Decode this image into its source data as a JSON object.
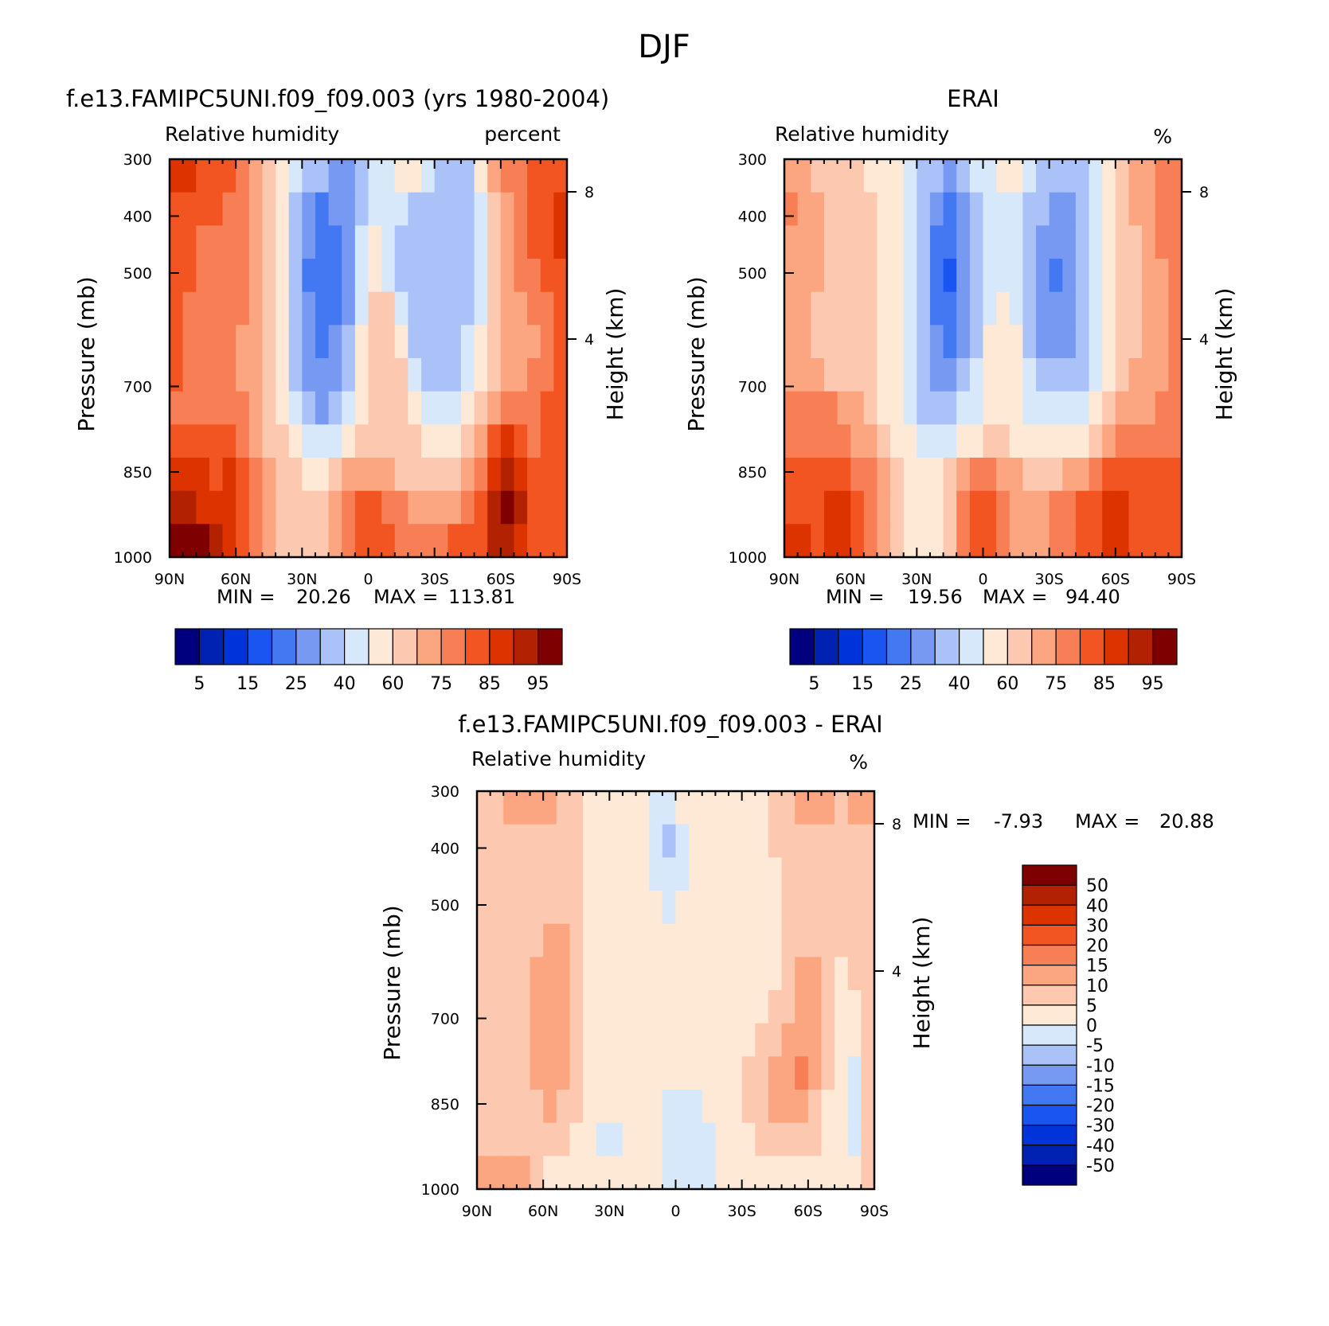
{
  "figure_title": "DJF",
  "colors": {
    "rh_palette": [
      "#00007f",
      "#0022b2",
      "#0033d9",
      "#1a55f2",
      "#4477f2",
      "#7799f2",
      "#aac2f7",
      "#d6e8fa",
      "#fee8d6",
      "#fcc8b0",
      "#fba680",
      "#f77e55",
      "#f25522",
      "#dd3300",
      "#b22200",
      "#7f0000"
    ],
    "diff_palette": [
      "#00007f",
      "#0022b2",
      "#0033d9",
      "#1a55f2",
      "#4477f2",
      "#7799f2",
      "#aac2f7",
      "#d6e8fa",
      "#fee8d6",
      "#fcc8b0",
      "#fba680",
      "#f77e55",
      "#f25522",
      "#dd3300",
      "#b22200",
      "#7f0000"
    ]
  },
  "chart_data": [
    {
      "type": "heatmap",
      "panel_title": "f.e13.FAMIPC5UNI.f09_f09.003 (yrs 1980-2004)",
      "left_label": "Relative humidity",
      "right_label": "percent",
      "ylabel": "Pressure (mb)",
      "right_axis_label": "Height (km)",
      "x_ticks": [
        "90N",
        "60N",
        "30N",
        "0",
        "30S",
        "60S",
        "90S"
      ],
      "y_ticks": [
        "300",
        "400",
        "500",
        "700",
        "850",
        "1000"
      ],
      "height_ticks": [
        "8",
        "4"
      ],
      "min_text": "MIN =",
      "min_value": "20.26",
      "max_text": "MAX =",
      "max_value": "113.81",
      "colorbar_labels": [
        "5",
        "15",
        "25",
        "40",
        "60",
        "75",
        "85",
        "95"
      ],
      "grid_rows": [
        [
          13,
          13,
          12,
          12,
          12,
          11,
          10,
          9,
          8,
          7,
          6,
          6,
          5,
          5,
          6,
          7,
          7,
          8,
          8,
          7,
          6,
          6,
          6,
          8,
          10,
          11,
          11,
          12,
          12,
          12
        ],
        [
          12,
          12,
          12,
          12,
          11,
          11,
          10,
          9,
          8,
          6,
          5,
          4,
          5,
          5,
          6,
          7,
          7,
          7,
          6,
          6,
          6,
          6,
          6,
          7,
          9,
          10,
          11,
          12,
          12,
          13
        ],
        [
          12,
          12,
          11,
          11,
          11,
          11,
          10,
          9,
          8,
          6,
          5,
          4,
          4,
          5,
          7,
          8,
          7,
          6,
          6,
          6,
          6,
          6,
          6,
          7,
          9,
          10,
          11,
          12,
          12,
          13
        ],
        [
          12,
          12,
          11,
          11,
          11,
          11,
          10,
          9,
          8,
          6,
          4,
          4,
          4,
          5,
          7,
          8,
          7,
          6,
          6,
          6,
          6,
          6,
          6,
          7,
          9,
          10,
          11,
          11,
          12,
          12
        ],
        [
          12,
          11,
          11,
          11,
          11,
          11,
          10,
          9,
          8,
          6,
          5,
          4,
          4,
          5,
          7,
          9,
          9,
          7,
          6,
          6,
          6,
          6,
          6,
          7,
          9,
          10,
          10,
          11,
          11,
          12
        ],
        [
          12,
          11,
          11,
          11,
          11,
          10,
          10,
          9,
          8,
          6,
          5,
          4,
          5,
          6,
          8,
          9,
          9,
          8,
          6,
          6,
          6,
          6,
          7,
          8,
          9,
          10,
          10,
          10,
          11,
          12
        ],
        [
          12,
          11,
          11,
          11,
          11,
          10,
          10,
          9,
          8,
          6,
          5,
          5,
          5,
          6,
          8,
          9,
          9,
          9,
          7,
          6,
          6,
          6,
          7,
          8,
          9,
          10,
          10,
          11,
          11,
          12
        ],
        [
          11,
          11,
          11,
          11,
          11,
          11,
          10,
          9,
          8,
          7,
          6,
          5,
          6,
          7,
          8,
          9,
          9,
          9,
          8,
          7,
          7,
          7,
          8,
          9,
          10,
          11,
          11,
          11,
          12,
          12
        ],
        [
          12,
          12,
          12,
          12,
          12,
          11,
          10,
          9,
          9,
          8,
          7,
          7,
          7,
          8,
          9,
          9,
          9,
          9,
          9,
          8,
          8,
          8,
          9,
          10,
          12,
          13,
          12,
          11,
          12,
          12
        ],
        [
          13,
          13,
          13,
          12,
          13,
          12,
          11,
          10,
          9,
          9,
          8,
          8,
          9,
          10,
          10,
          10,
          10,
          9,
          9,
          9,
          9,
          9,
          10,
          11,
          13,
          14,
          13,
          12,
          12,
          12
        ],
        [
          14,
          14,
          13,
          13,
          13,
          12,
          11,
          10,
          9,
          9,
          9,
          9,
          10,
          11,
          12,
          12,
          11,
          11,
          10,
          10,
          10,
          10,
          11,
          12,
          14,
          15,
          14,
          12,
          12,
          12
        ],
        [
          15,
          15,
          15,
          14,
          13,
          12,
          11,
          10,
          9,
          9,
          9,
          9,
          10,
          11,
          12,
          12,
          12,
          11,
          11,
          11,
          11,
          12,
          12,
          12,
          14,
          14,
          13,
          12,
          12,
          12
        ]
      ]
    },
    {
      "type": "heatmap",
      "panel_title": "ERAI",
      "left_label": "Relative humidity",
      "right_label": "%",
      "ylabel": "Pressure (mb)",
      "right_axis_label": "Height (km)",
      "x_ticks": [
        "90N",
        "60N",
        "30N",
        "0",
        "30S",
        "60S",
        "90S"
      ],
      "y_ticks": [
        "300",
        "400",
        "500",
        "700",
        "850",
        "1000"
      ],
      "height_ticks": [
        "8",
        "4"
      ],
      "min_text": "MIN =",
      "min_value": "19.56",
      "max_text": "MAX =",
      "max_value": "94.40",
      "colorbar_labels": [
        "5",
        "15",
        "25",
        "40",
        "60",
        "75",
        "85",
        "95"
      ],
      "grid_rows": [
        [
          10,
          10,
          9,
          9,
          9,
          9,
          8,
          8,
          8,
          7,
          6,
          6,
          5,
          6,
          7,
          7,
          8,
          8,
          7,
          6,
          6,
          6,
          6,
          7,
          8,
          9,
          10,
          10,
          11,
          11
        ],
        [
          11,
          10,
          10,
          9,
          9,
          9,
          9,
          8,
          8,
          7,
          6,
          5,
          4,
          5,
          6,
          7,
          7,
          7,
          6,
          6,
          5,
          5,
          6,
          7,
          8,
          9,
          10,
          10,
          11,
          11
        ],
        [
          10,
          10,
          10,
          9,
          9,
          9,
          9,
          8,
          8,
          7,
          6,
          4,
          4,
          5,
          6,
          7,
          7,
          7,
          6,
          5,
          5,
          5,
          6,
          7,
          8,
          9,
          9,
          10,
          11,
          11
        ],
        [
          10,
          10,
          10,
          9,
          9,
          9,
          9,
          8,
          8,
          7,
          6,
          4,
          3,
          5,
          6,
          7,
          7,
          7,
          6,
          5,
          4,
          5,
          6,
          7,
          8,
          9,
          9,
          10,
          10,
          11
        ],
        [
          10,
          10,
          9,
          9,
          9,
          9,
          9,
          8,
          8,
          7,
          6,
          4,
          4,
          5,
          6,
          7,
          8,
          7,
          6,
          5,
          5,
          5,
          6,
          7,
          8,
          9,
          9,
          10,
          10,
          11
        ],
        [
          10,
          10,
          9,
          9,
          9,
          9,
          9,
          8,
          8,
          7,
          6,
          5,
          4,
          5,
          6,
          8,
          8,
          8,
          6,
          5,
          5,
          5,
          6,
          7,
          8,
          9,
          9,
          10,
          10,
          11
        ],
        [
          10,
          10,
          10,
          9,
          9,
          9,
          9,
          8,
          8,
          7,
          6,
          5,
          5,
          6,
          7,
          8,
          8,
          8,
          7,
          6,
          6,
          6,
          6,
          7,
          8,
          9,
          10,
          10,
          10,
          11
        ],
        [
          11,
          11,
          11,
          11,
          10,
          10,
          9,
          8,
          8,
          7,
          6,
          6,
          6,
          7,
          7,
          8,
          8,
          8,
          7,
          7,
          7,
          7,
          7,
          8,
          9,
          10,
          10,
          10,
          11,
          11
        ],
        [
          11,
          11,
          11,
          11,
          11,
          10,
          10,
          9,
          8,
          8,
          7,
          7,
          7,
          8,
          8,
          9,
          9,
          8,
          8,
          8,
          8,
          8,
          8,
          9,
          10,
          11,
          11,
          11,
          11,
          11
        ],
        [
          12,
          12,
          12,
          12,
          12,
          11,
          11,
          10,
          9,
          8,
          8,
          8,
          9,
          10,
          11,
          11,
          10,
          10,
          9,
          9,
          9,
          10,
          10,
          11,
          12,
          12,
          12,
          12,
          12,
          12
        ],
        [
          12,
          12,
          12,
          13,
          13,
          12,
          11,
          10,
          9,
          8,
          8,
          8,
          9,
          11,
          12,
          12,
          11,
          10,
          10,
          10,
          11,
          11,
          12,
          12,
          13,
          13,
          12,
          12,
          12,
          12
        ],
        [
          13,
          13,
          12,
          13,
          13,
          12,
          11,
          10,
          9,
          8,
          8,
          8,
          9,
          11,
          12,
          12,
          11,
          10,
          10,
          10,
          11,
          11,
          12,
          12,
          13,
          13,
          12,
          12,
          12,
          12
        ]
      ]
    },
    {
      "type": "heatmap",
      "panel_title": "f.e13.FAMIPC5UNI.f09_f09.003 - ERAI",
      "left_label": "Relative humidity",
      "right_label": "%",
      "ylabel": "Pressure (mb)",
      "right_axis_label": "Height (km)",
      "x_ticks": [
        "90N",
        "60N",
        "30N",
        "0",
        "30S",
        "60S",
        "90S"
      ],
      "y_ticks": [
        "300",
        "400",
        "500",
        "700",
        "850",
        "1000"
      ],
      "height_ticks": [
        "8",
        "4"
      ],
      "min_text": "MIN =",
      "min_value": "-7.93",
      "max_text": "MAX =",
      "max_value": "20.88",
      "colorbar_labels": [
        "50",
        "40",
        "30",
        "20",
        "15",
        "10",
        "5",
        "0",
        "-5",
        "-10",
        "-15",
        "-20",
        "-30",
        "-40",
        "-50"
      ],
      "grid_rows": [
        [
          9,
          9,
          10,
          10,
          10,
          10,
          9,
          9,
          8,
          8,
          8,
          8,
          8,
          7,
          7,
          8,
          8,
          8,
          8,
          8,
          8,
          8,
          9,
          9,
          10,
          10,
          10,
          9,
          10,
          10
        ],
        [
          9,
          9,
          9,
          9,
          9,
          9,
          9,
          9,
          8,
          8,
          8,
          8,
          8,
          7,
          6,
          7,
          8,
          8,
          8,
          8,
          8,
          8,
          9,
          9,
          9,
          9,
          9,
          9,
          9,
          9
        ],
        [
          9,
          9,
          9,
          9,
          9,
          9,
          9,
          9,
          8,
          8,
          8,
          8,
          8,
          7,
          7,
          7,
          8,
          8,
          8,
          8,
          8,
          8,
          8,
          9,
          9,
          9,
          9,
          9,
          9,
          9
        ],
        [
          9,
          9,
          9,
          9,
          9,
          9,
          9,
          9,
          8,
          8,
          8,
          8,
          8,
          8,
          7,
          8,
          8,
          8,
          8,
          8,
          8,
          8,
          8,
          9,
          9,
          9,
          9,
          9,
          9,
          9
        ],
        [
          9,
          9,
          9,
          9,
          9,
          10,
          10,
          9,
          8,
          8,
          8,
          8,
          8,
          8,
          8,
          8,
          8,
          8,
          8,
          8,
          8,
          8,
          8,
          9,
          9,
          9,
          9,
          9,
          9,
          9
        ],
        [
          9,
          9,
          9,
          9,
          10,
          10,
          10,
          9,
          8,
          8,
          8,
          8,
          8,
          8,
          8,
          8,
          8,
          8,
          8,
          8,
          8,
          8,
          8,
          9,
          10,
          10,
          9,
          8,
          9,
          9
        ],
        [
          9,
          9,
          9,
          9,
          10,
          10,
          10,
          9,
          8,
          8,
          8,
          8,
          8,
          8,
          8,
          8,
          8,
          8,
          8,
          8,
          8,
          8,
          9,
          9,
          10,
          10,
          9,
          8,
          8,
          9
        ],
        [
          9,
          9,
          9,
          9,
          10,
          10,
          10,
          9,
          8,
          8,
          8,
          8,
          8,
          8,
          8,
          8,
          8,
          8,
          8,
          8,
          8,
          9,
          9,
          10,
          10,
          10,
          9,
          8,
          8,
          9
        ],
        [
          9,
          9,
          9,
          9,
          10,
          10,
          10,
          9,
          8,
          8,
          8,
          8,
          8,
          8,
          8,
          8,
          8,
          8,
          8,
          8,
          9,
          9,
          10,
          10,
          11,
          10,
          9,
          8,
          7,
          9
        ],
        [
          9,
          9,
          9,
          9,
          9,
          10,
          9,
          9,
          8,
          8,
          8,
          8,
          8,
          8,
          7,
          7,
          7,
          8,
          8,
          8,
          9,
          9,
          10,
          10,
          10,
          9,
          8,
          8,
          7,
          9
        ],
        [
          9,
          9,
          9,
          9,
          9,
          9,
          9,
          8,
          8,
          7,
          7,
          8,
          8,
          8,
          7,
          7,
          7,
          7,
          8,
          8,
          8,
          9,
          9,
          9,
          9,
          9,
          8,
          8,
          7,
          9
        ],
        [
          10,
          10,
          10,
          10,
          9,
          8,
          8,
          8,
          8,
          8,
          8,
          8,
          8,
          8,
          7,
          7,
          7,
          7,
          8,
          8,
          8,
          8,
          8,
          8,
          8,
          8,
          8,
          8,
          8,
          9
        ]
      ]
    }
  ]
}
